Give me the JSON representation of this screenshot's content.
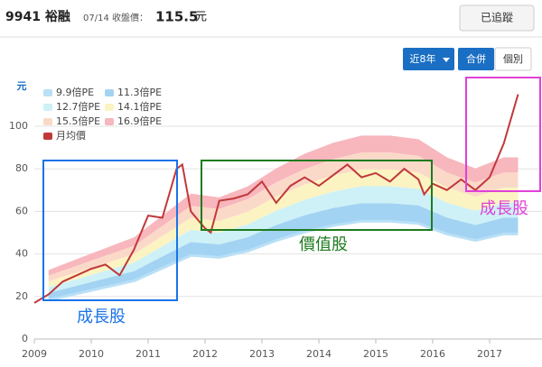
{
  "header": {
    "symbol": "9941 裕融",
    "date_label": "07/14 收盤價：",
    "price": "115.5",
    "unit": "元",
    "follow_button": "已追蹤"
  },
  "controls": {
    "range": "近8年",
    "consolidated": "合併",
    "individual": "個別"
  },
  "chart_data": {
    "type": "area",
    "y_unit": "元",
    "x": [
      2009.25,
      2009.75,
      2010.25,
      2010.75,
      2011.25,
      2011.75,
      2012.25,
      2012.75,
      2013.25,
      2013.75,
      2014.25,
      2014.75,
      2015.25,
      2015.75,
      2016.25,
      2016.75,
      2017.25,
      2017.5
    ],
    "series": [
      {
        "name": "9.9倍PE",
        "color": "#b9e0f7",
        "values": [
          19,
          22,
          25,
          28,
          34,
          40,
          39,
          42,
          47,
          51,
          54,
          56,
          56,
          55,
          50,
          47,
          50,
          50
        ]
      },
      {
        "name": "11.3倍PE",
        "color": "#a3d3f2",
        "values": [
          21.7,
          25.1,
          28.5,
          31.9,
          38.8,
          45.6,
          44.5,
          47.9,
          53.6,
          58.2,
          61.6,
          63.9,
          63.9,
          62.8,
          57.1,
          53.6,
          57.1,
          57.1
        ]
      },
      {
        "name": "12.7倍PE",
        "color": "#cdf1f7",
        "values": [
          24.4,
          28.2,
          32.1,
          35.9,
          43.6,
          51.3,
          50.0,
          53.9,
          60.3,
          65.4,
          69.3,
          71.8,
          71.8,
          70.6,
          64.1,
          60.3,
          64.1,
          64.1
        ]
      },
      {
        "name": "14.1倍PE",
        "color": "#fcf3c2",
        "values": [
          27.1,
          31.3,
          35.6,
          39.9,
          48.4,
          57.0,
          55.5,
          59.8,
          66.9,
          72.6,
          76.9,
          79.7,
          79.7,
          78.3,
          71.2,
          66.9,
          71.2,
          71.2
        ]
      },
      {
        "name": "15.5倍PE",
        "color": "#fbd9c9",
        "values": [
          29.8,
          34.5,
          39.2,
          43.8,
          53.2,
          62.6,
          61.1,
          65.8,
          73.6,
          79.9,
          84.6,
          87.7,
          87.7,
          86.1,
          78.3,
          73.6,
          78.3,
          78.3
        ]
      },
      {
        "name": "16.9倍PE",
        "color": "#f8b6bd",
        "values": [
          32.4,
          37.6,
          42.7,
          47.8,
          58.0,
          68.3,
          66.6,
          71.7,
          80.2,
          87.1,
          92.2,
          95.6,
          95.6,
          93.9,
          85.4,
          80.2,
          85.4,
          85.4
        ]
      },
      {
        "name": "月均價",
        "color": "#c0393b",
        "type": "line",
        "x": [
          2009.0,
          2009.25,
          2009.5,
          2009.75,
          2010.0,
          2010.25,
          2010.5,
          2010.75,
          2011.0,
          2011.25,
          2011.5,
          2011.6,
          2011.75,
          2012.0,
          2012.1,
          2012.25,
          2012.5,
          2012.75,
          2013.0,
          2013.25,
          2013.5,
          2013.75,
          2014.0,
          2014.25,
          2014.5,
          2014.75,
          2015.0,
          2015.25,
          2015.5,
          2015.75,
          2015.85,
          2016.0,
          2016.25,
          2016.5,
          2016.75,
          2017.0,
          2017.25,
          2017.5
        ],
        "values": [
          17,
          21,
          27,
          30,
          33,
          35,
          30,
          42,
          58,
          57,
          80,
          82,
          60,
          52,
          50,
          65,
          66,
          68,
          74,
          64,
          72,
          76,
          72,
          77,
          82,
          76,
          78,
          74,
          80,
          75,
          68,
          73,
          70,
          75,
          70,
          76,
          92,
          115
        ]
      }
    ],
    "xlim": [
      2009,
      2017.6
    ],
    "xticks": [
      2009,
      2010,
      2011,
      2012,
      2013,
      2014,
      2015,
      2016,
      2017
    ],
    "ylim": [
      0,
      118
    ],
    "yticks": [
      0,
      20,
      40,
      60,
      80,
      100
    ],
    "grid": true,
    "annotations": [
      {
        "text": "成長股",
        "color": "#1a73e8"
      },
      {
        "text": "價值股",
        "color": "#1e7b1e"
      },
      {
        "text": "成長股",
        "color": "#e040d8"
      }
    ]
  }
}
